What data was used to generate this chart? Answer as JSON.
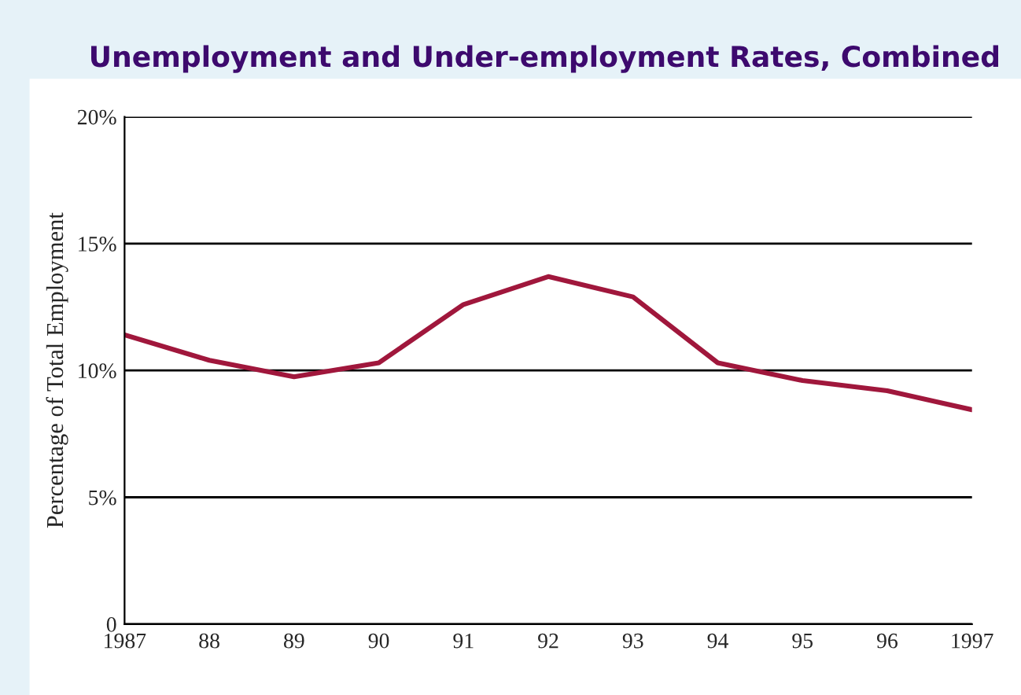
{
  "chart_data": {
    "type": "line",
    "title": "Unemployment and Under-employment Rates, Combined",
    "ylabel": "Percentage of Total Employment",
    "x": [
      1987,
      1988,
      1989,
      1990,
      1991,
      1992,
      1993,
      1994,
      1995,
      1996,
      1997
    ],
    "series": [
      {
        "color": "#a0173c",
        "values": [
          11.4,
          10.4,
          9.75,
          10.3,
          12.6,
          13.7,
          12.9,
          10.3,
          9.6,
          9.2,
          8.45
        ]
      }
    ],
    "xlim": [
      1987,
      1997
    ],
    "xticks": [
      {
        "value": 1987,
        "label": "1987"
      },
      {
        "value": 1988,
        "label": "88"
      },
      {
        "value": 1989,
        "label": "89"
      },
      {
        "value": 1990,
        "label": "90"
      },
      {
        "value": 1991,
        "label": "91"
      },
      {
        "value": 1992,
        "label": "92"
      },
      {
        "value": 1993,
        "label": "93"
      },
      {
        "value": 1994,
        "label": "94"
      },
      {
        "value": 1995,
        "label": "95"
      },
      {
        "value": 1996,
        "label": "96"
      },
      {
        "value": 1997,
        "label": "1997"
      }
    ],
    "ylim": [
      0,
      20
    ],
    "yticks": [
      {
        "value": 0,
        "label": "0"
      },
      {
        "value": 5,
        "label": "5%"
      },
      {
        "value": 10,
        "label": "10%"
      },
      {
        "value": 15,
        "label": "15%"
      },
      {
        "value": 20,
        "label": "20%"
      }
    ],
    "grid": "y",
    "legend": false,
    "marker": "none",
    "line_style": "solid"
  }
}
